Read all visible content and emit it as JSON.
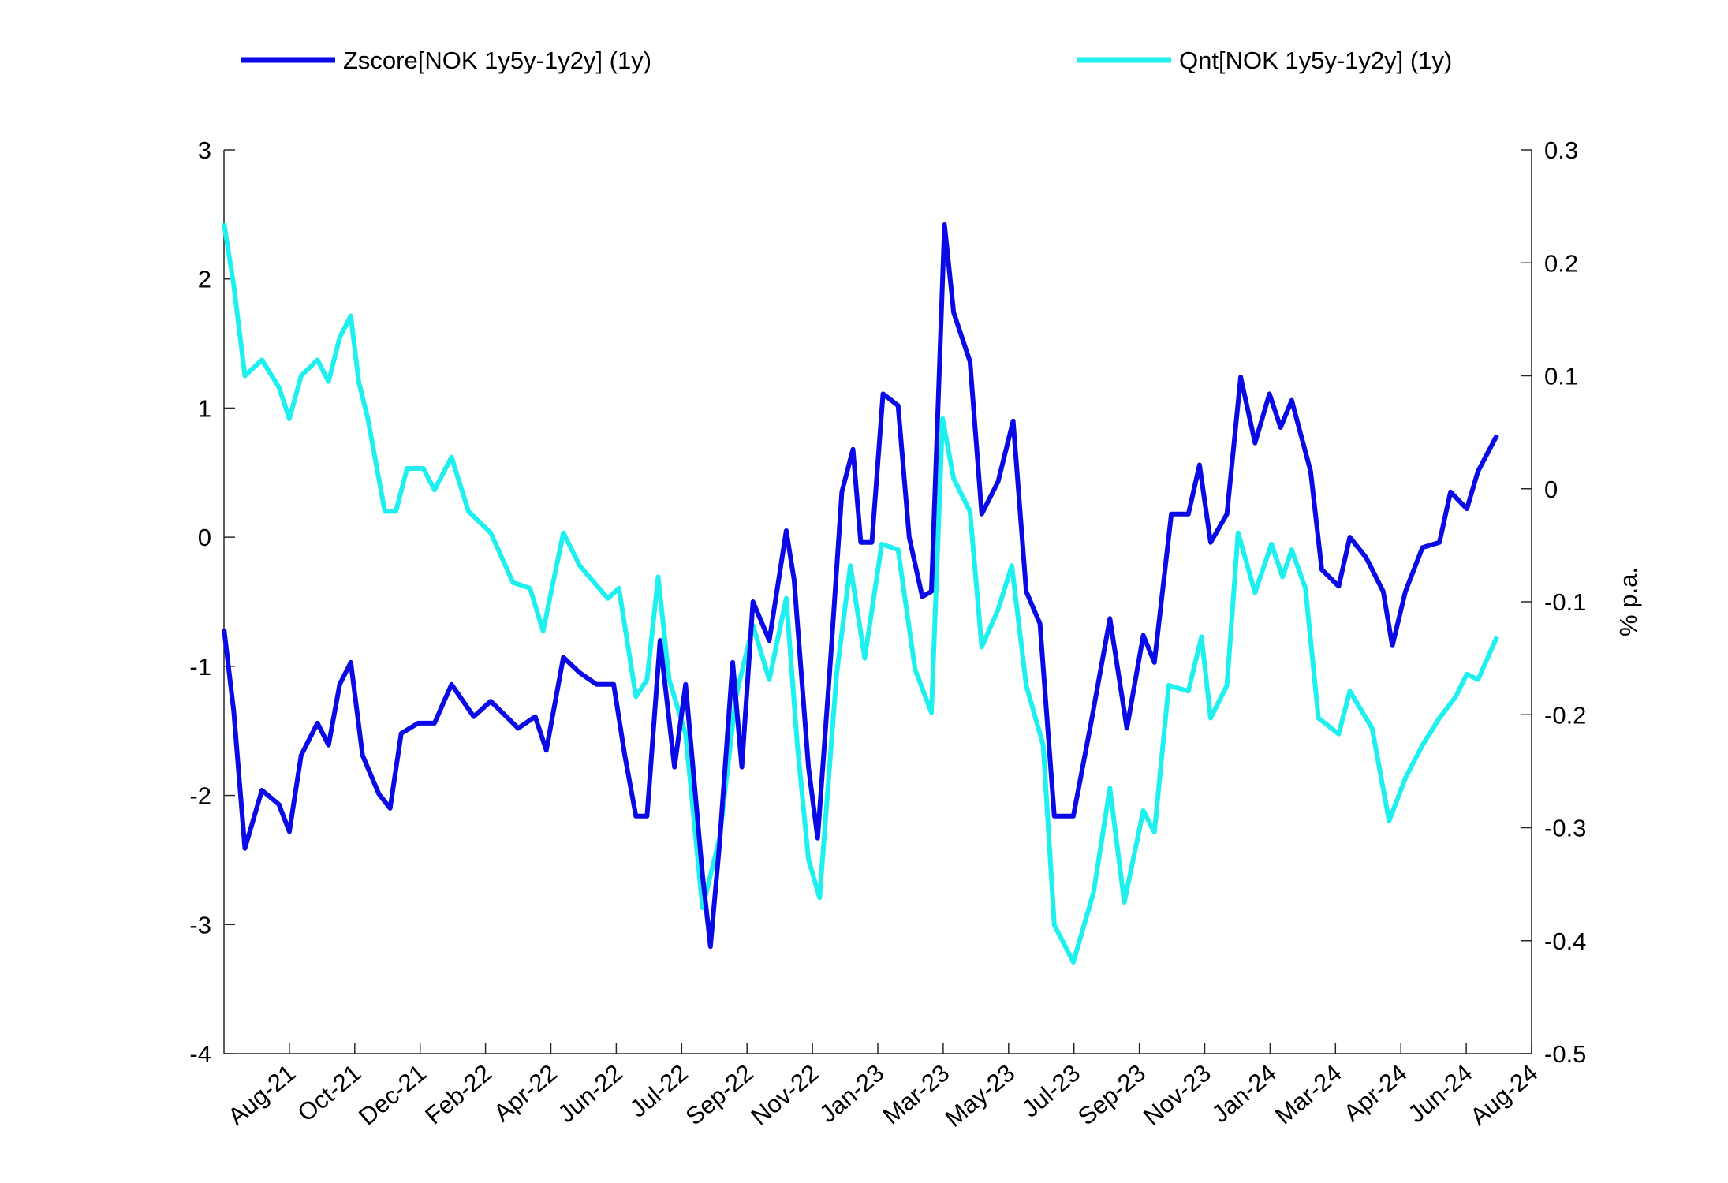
{
  "chart_data": {
    "type": "line",
    "xlim": [
      0,
      20
    ],
    "xticks": [
      {
        "value": 1,
        "label": "Aug-21"
      },
      {
        "value": 2,
        "label": "Oct-21"
      },
      {
        "value": 3,
        "label": "Dec-21"
      },
      {
        "value": 4,
        "label": "Feb-22"
      },
      {
        "value": 5,
        "label": "Apr-22"
      },
      {
        "value": 6,
        "label": "Jun-22"
      },
      {
        "value": 7,
        "label": "Jul-22"
      },
      {
        "value": 8,
        "label": "Sep-22"
      },
      {
        "value": 9,
        "label": "Nov-22"
      },
      {
        "value": 10,
        "label": "Jan-23"
      },
      {
        "value": 11,
        "label": "Mar-23"
      },
      {
        "value": 12,
        "label": "May-23"
      },
      {
        "value": 13,
        "label": "Jul-23"
      },
      {
        "value": 14,
        "label": "Sep-23"
      },
      {
        "value": 15,
        "label": "Nov-23"
      },
      {
        "value": 16,
        "label": "Jan-24"
      },
      {
        "value": 17,
        "label": "Mar-24"
      },
      {
        "value": 18,
        "label": "Apr-24"
      },
      {
        "value": 19,
        "label": "Jun-24"
      },
      {
        "value": 20,
        "label": "Aug-24"
      }
    ],
    "ylim": [
      -4,
      3
    ],
    "yticks": [
      -4,
      -3,
      -2,
      -1,
      0,
      1,
      2,
      3
    ],
    "y2lim": [
      -0.5,
      0.3
    ],
    "y2ticks": [
      -0.5,
      -0.4,
      -0.3,
      -0.2,
      -0.1,
      0,
      0.1,
      0.2,
      0.3
    ],
    "y2label": "% p.a.",
    "series": [
      {
        "name": "Zscore[NOK 1y5y-1y2y] (1y)",
        "color": "#0a0ae6",
        "x": [
          0,
          0.15,
          0.32,
          0.58,
          0.84,
          1.0,
          1.18,
          1.43,
          1.6,
          1.77,
          1.94,
          2.12,
          2.37,
          2.54,
          2.71,
          2.97,
          3.22,
          3.48,
          3.82,
          4.08,
          4.5,
          4.76,
          4.93,
          5.19,
          5.44,
          5.7,
          5.96,
          6.13,
          6.3,
          6.47,
          6.67,
          6.89,
          7.06,
          7.32,
          7.44,
          7.58,
          7.78,
          7.92,
          8.09,
          8.34,
          8.6,
          8.72,
          8.94,
          9.08,
          9.28,
          9.45,
          9.62,
          9.74,
          9.91,
          10.08,
          10.31,
          10.48,
          10.68,
          10.82,
          11.02,
          11.16,
          11.41,
          11.59,
          11.84,
          12.07,
          12.27,
          12.48,
          12.7,
          12.99,
          13.26,
          13.55,
          13.81,
          14.06,
          14.23,
          14.49,
          14.75,
          14.92,
          15.09,
          15.34,
          15.55,
          15.77,
          15.99,
          16.16,
          16.33,
          16.62,
          16.79,
          17.05,
          17.22,
          17.47,
          17.73,
          17.87,
          18.07,
          18.33,
          18.59,
          18.76,
          19.01,
          19.18,
          19.47
        ],
        "values": [
          -0.71,
          -1.35,
          -2.41,
          -1.96,
          -2.07,
          -2.28,
          -1.69,
          -1.44,
          -1.61,
          -1.14,
          -0.97,
          -1.69,
          -1.99,
          -2.1,
          -1.52,
          -1.44,
          -1.44,
          -1.14,
          -1.39,
          -1.27,
          -1.48,
          -1.39,
          -1.65,
          -0.93,
          -1.05,
          -1.14,
          -1.14,
          -1.69,
          -2.16,
          -2.16,
          -0.8,
          -1.78,
          -1.14,
          -2.62,
          -3.17,
          -2.37,
          -0.97,
          -1.78,
          -0.5,
          -0.8,
          0.05,
          -0.33,
          -1.78,
          -2.33,
          -0.93,
          0.35,
          0.68,
          -0.04,
          -0.04,
          1.11,
          1.02,
          0,
          -0.46,
          -0.42,
          2.42,
          1.74,
          1.36,
          0.18,
          0.43,
          0.9,
          -0.42,
          -0.67,
          -2.16,
          -2.16,
          -1.44,
          -0.63,
          -1.48,
          -0.76,
          -0.97,
          0.18,
          0.18,
          0.56,
          -0.04,
          0.18,
          1.24,
          0.73,
          1.11,
          0.85,
          1.06,
          0.51,
          -0.25,
          -0.38,
          0,
          -0.16,
          -0.42,
          -0.84,
          -0.42,
          -0.08,
          -0.04,
          0.35,
          0.22,
          0.51,
          0.79
        ]
      },
      {
        "name": "Qnt[NOK 1y5y-1y2y] (1y)",
        "color": "#1ef0f0",
        "axis": "y2",
        "x": [
          0,
          0.15,
          0.32,
          0.58,
          0.84,
          1.0,
          1.18,
          1.43,
          1.6,
          1.77,
          1.94,
          2.06,
          2.2,
          2.46,
          2.63,
          2.8,
          3.05,
          3.22,
          3.48,
          3.74,
          4.08,
          4.42,
          4.68,
          4.88,
          5.19,
          5.44,
          5.87,
          6.04,
          6.3,
          6.47,
          6.64,
          6.81,
          7.06,
          7.32,
          7.58,
          7.83,
          8.09,
          8.34,
          8.6,
          8.77,
          8.94,
          9.11,
          9.37,
          9.58,
          9.8,
          10.06,
          10.31,
          10.57,
          10.82,
          10.99,
          11.16,
          11.41,
          11.59,
          11.84,
          12.05,
          12.27,
          12.53,
          12.7,
          12.99,
          13.3,
          13.55,
          13.77,
          14.06,
          14.23,
          14.45,
          14.75,
          14.95,
          15.09,
          15.34,
          15.51,
          15.77,
          16.02,
          16.19,
          16.33,
          16.54,
          16.74,
          17.05,
          17.22,
          17.56,
          17.82,
          18.07,
          18.33,
          18.59,
          18.84,
          19.01,
          19.18,
          19.47
        ],
        "values": [
          0.235,
          0.18,
          0.1,
          0.114,
          0.09,
          0.062,
          0.1,
          0.114,
          0.095,
          0.134,
          0.153,
          0.095,
          0.062,
          -0.02,
          -0.02,
          0.018,
          0.018,
          -0.001,
          0.028,
          -0.02,
          -0.039,
          -0.083,
          -0.088,
          -0.126,
          -0.039,
          -0.068,
          -0.097,
          -0.088,
          -0.184,
          -0.169,
          -0.078,
          -0.169,
          -0.217,
          -0.371,
          -0.309,
          -0.184,
          -0.121,
          -0.169,
          -0.097,
          -0.227,
          -0.328,
          -0.362,
          -0.164,
          -0.068,
          -0.15,
          -0.049,
          -0.054,
          -0.16,
          -0.198,
          0.062,
          0.009,
          -0.02,
          -0.14,
          -0.107,
          -0.068,
          -0.174,
          -0.227,
          -0.386,
          -0.419,
          -0.357,
          -0.265,
          -0.366,
          -0.285,
          -0.304,
          -0.174,
          -0.179,
          -0.131,
          -0.203,
          -0.174,
          -0.039,
          -0.092,
          -0.049,
          -0.078,
          -0.054,
          -0.088,
          -0.203,
          -0.217,
          -0.179,
          -0.212,
          -0.294,
          -0.256,
          -0.227,
          -0.203,
          -0.184,
          -0.164,
          -0.169,
          -0.131
        ]
      }
    ]
  }
}
